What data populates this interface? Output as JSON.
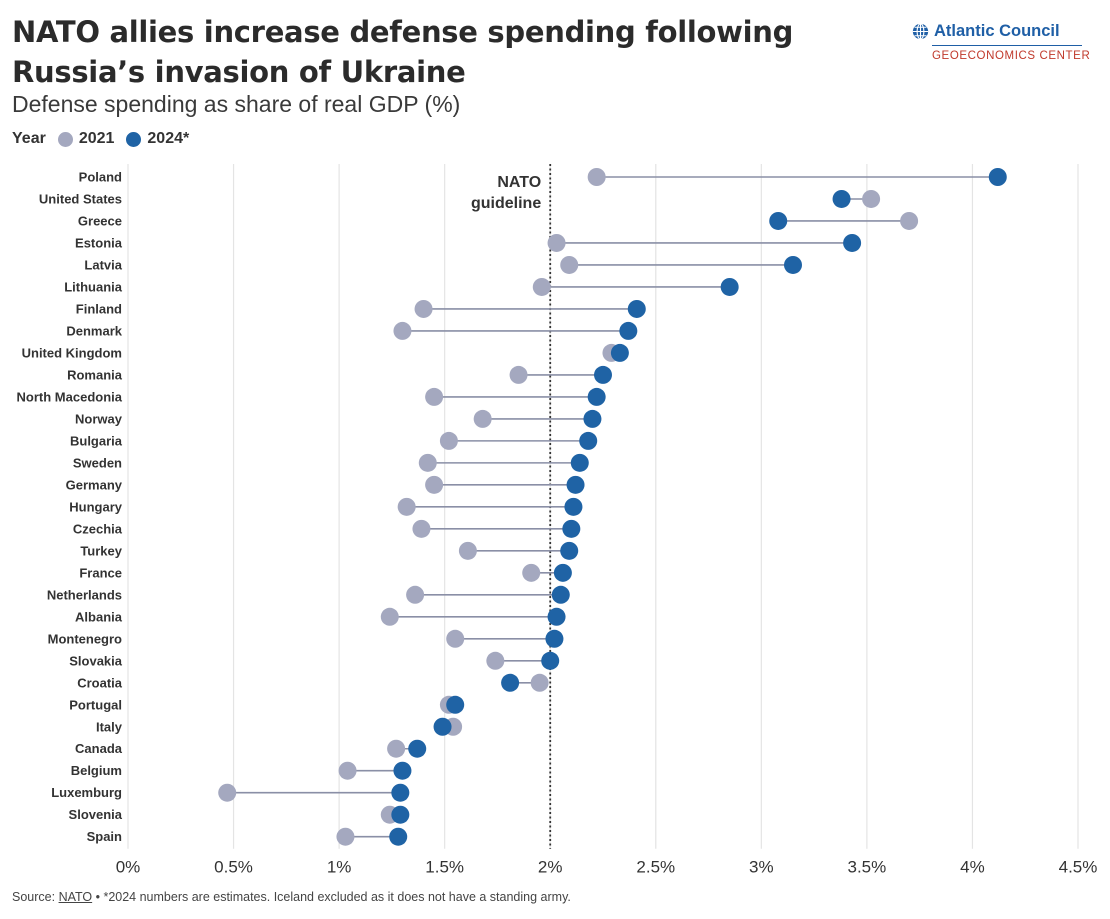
{
  "header": {
    "title": "NATO allies increase defense spending following Russia’s invasion of Ukraine",
    "subtitle": "Defense spending as share of real GDP (%)"
  },
  "legend": {
    "label": "Year",
    "items": [
      {
        "label": "2021",
        "color": "#a4a8bf"
      },
      {
        "label": "2024*",
        "color": "#1f63a5"
      }
    ]
  },
  "logo": {
    "name": "Atlantic Council",
    "sub": "GEOECONOMICS CENTER"
  },
  "source": {
    "prefix": "Source: ",
    "link": "NATO",
    "rest": " • *2024 numbers are estimates. Iceland excluded as it does not have a standing army."
  },
  "colors": {
    "line": "#8a8fa6",
    "grid": "#e4e4e4",
    "c2021": "#a4a8bf",
    "c2024": "#1f63a5"
  },
  "chart_data": {
    "type": "dot-plot",
    "xlim": [
      0,
      4.5
    ],
    "ticks": [
      {
        "value": 0,
        "label": "0%"
      },
      {
        "value": 0.5,
        "label": "0.5%"
      },
      {
        "value": 1,
        "label": "1%"
      },
      {
        "value": 1.5,
        "label": "1.5%"
      },
      {
        "value": 2,
        "label": "2%"
      },
      {
        "value": 2.5,
        "label": "2.5%"
      },
      {
        "value": 3,
        "label": "3%"
      },
      {
        "value": 3.5,
        "label": "3.5%"
      },
      {
        "value": 4,
        "label": "4%"
      },
      {
        "value": 4.5,
        "label": "4.5%"
      }
    ],
    "reference_line": {
      "value": 2,
      "label_lines": [
        "NATO",
        "guideline"
      ]
    },
    "grid": true,
    "series_names": [
      "2021",
      "2024*"
    ],
    "rows": [
      {
        "country": "Poland",
        "y2021": 2.22,
        "y2024": 4.12
      },
      {
        "country": "United States",
        "y2021": 3.52,
        "y2024": 3.38
      },
      {
        "country": "Greece",
        "y2021": 3.7,
        "y2024": 3.08
      },
      {
        "country": "Estonia",
        "y2021": 2.03,
        "y2024": 3.43
      },
      {
        "country": "Latvia",
        "y2021": 2.09,
        "y2024": 3.15
      },
      {
        "country": "Lithuania",
        "y2021": 1.96,
        "y2024": 2.85
      },
      {
        "country": "Finland",
        "y2021": 1.4,
        "y2024": 2.41
      },
      {
        "country": "Denmark",
        "y2021": 1.3,
        "y2024": 2.37
      },
      {
        "country": "United Kingdom",
        "y2021": 2.29,
        "y2024": 2.33
      },
      {
        "country": "Romania",
        "y2021": 1.85,
        "y2024": 2.25
      },
      {
        "country": "North Macedonia",
        "y2021": 1.45,
        "y2024": 2.22
      },
      {
        "country": "Norway",
        "y2021": 1.68,
        "y2024": 2.2
      },
      {
        "country": "Bulgaria",
        "y2021": 1.52,
        "y2024": 2.18
      },
      {
        "country": "Sweden",
        "y2021": 1.42,
        "y2024": 2.14
      },
      {
        "country": "Germany",
        "y2021": 1.45,
        "y2024": 2.12
      },
      {
        "country": "Hungary",
        "y2021": 1.32,
        "y2024": 2.11
      },
      {
        "country": "Czechia",
        "y2021": 1.39,
        "y2024": 2.1
      },
      {
        "country": "Turkey",
        "y2021": 1.61,
        "y2024": 2.09
      },
      {
        "country": "France",
        "y2021": 1.91,
        "y2024": 2.06
      },
      {
        "country": "Netherlands",
        "y2021": 1.36,
        "y2024": 2.05
      },
      {
        "country": "Albania",
        "y2021": 1.24,
        "y2024": 2.03
      },
      {
        "country": "Montenegro",
        "y2021": 1.55,
        "y2024": 2.02
      },
      {
        "country": "Slovakia",
        "y2021": 1.74,
        "y2024": 2.0
      },
      {
        "country": "Croatia",
        "y2021": 1.95,
        "y2024": 1.81
      },
      {
        "country": "Portugal",
        "y2021": 1.52,
        "y2024": 1.55
      },
      {
        "country": "Italy",
        "y2021": 1.54,
        "y2024": 1.49
      },
      {
        "country": "Canada",
        "y2021": 1.27,
        "y2024": 1.37
      },
      {
        "country": "Belgium",
        "y2021": 1.04,
        "y2024": 1.3
      },
      {
        "country": "Luxemburg",
        "y2021": 0.47,
        "y2024": 1.29
      },
      {
        "country": "Slovenia",
        "y2021": 1.24,
        "y2024": 1.29
      },
      {
        "country": "Spain",
        "y2021": 1.03,
        "y2024": 1.28
      }
    ]
  }
}
